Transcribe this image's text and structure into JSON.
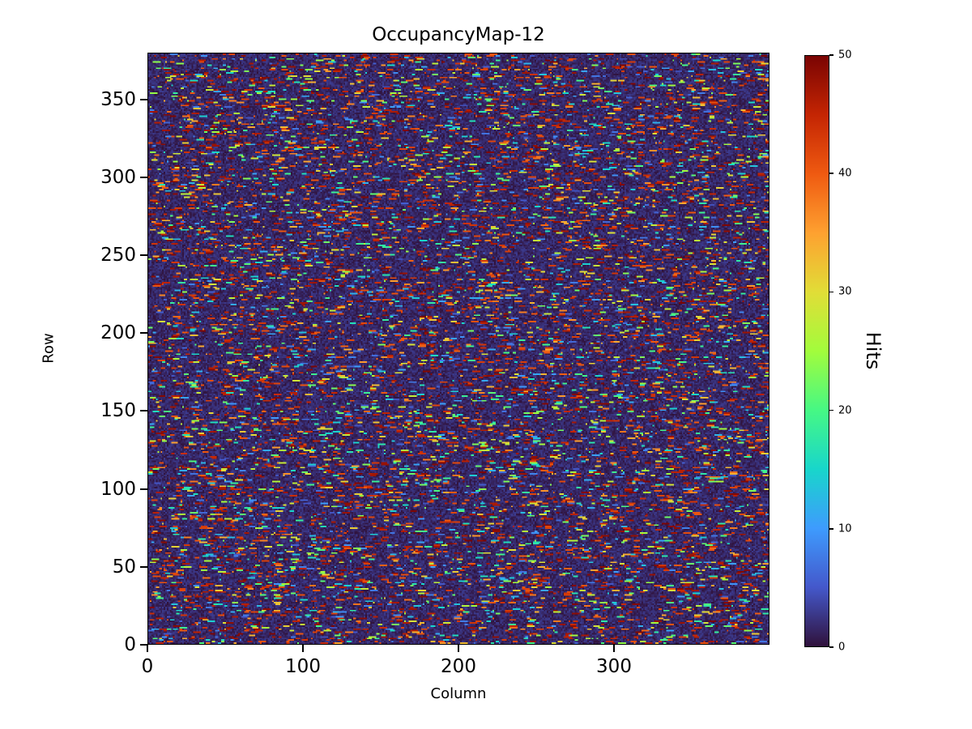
{
  "chart_data": {
    "type": "heatmap",
    "title": "OccupancyMap-12",
    "xlabel": "Column",
    "ylabel": "Row",
    "colorbar_label": "Hits",
    "grid_cols": 400,
    "grid_rows": 380,
    "xlim": [
      0,
      400
    ],
    "ylim": [
      0,
      380
    ],
    "clim": [
      0,
      50
    ],
    "x_ticks": [
      0,
      100,
      200,
      300
    ],
    "y_ticks": [
      0,
      50,
      100,
      150,
      200,
      250,
      300,
      350
    ],
    "colorbar_ticks": [
      0,
      10,
      20,
      30,
      40,
      50
    ],
    "colormap": "turbo",
    "colormap_stops": [
      {
        "t": 0.0,
        "color": "#30123b"
      },
      {
        "t": 0.1,
        "color": "#4458cb"
      },
      {
        "t": 0.2,
        "color": "#3e9bfe"
      },
      {
        "t": 0.3,
        "color": "#18d6cb"
      },
      {
        "t": 0.4,
        "color": "#46f884"
      },
      {
        "t": 0.5,
        "color": "#a2fc3c"
      },
      {
        "t": 0.6,
        "color": "#e1dd37"
      },
      {
        "t": 0.7,
        "color": "#fea130"
      },
      {
        "t": 0.8,
        "color": "#ef5a11"
      },
      {
        "t": 0.9,
        "color": "#c42503"
      },
      {
        "t": 1.0,
        "color": "#7a0403"
      }
    ],
    "data_description": "Dense random occupancy speckle map: dark low-hit background (0-3 hits) covering most cells, with short horizontal runs of higher hit counts up to 50; high (red) runs dominate, with scattered blue/cyan/green/yellow/orange runs.",
    "generation": {
      "seed": 12,
      "background_value_max": 3,
      "run_start_probability": 0.07,
      "run_length_min": 1,
      "run_length_max": 5,
      "high_run_fraction": 0.5,
      "high_run_value_range": [
        40,
        50
      ],
      "other_run_value_range": [
        4,
        40
      ]
    }
  }
}
